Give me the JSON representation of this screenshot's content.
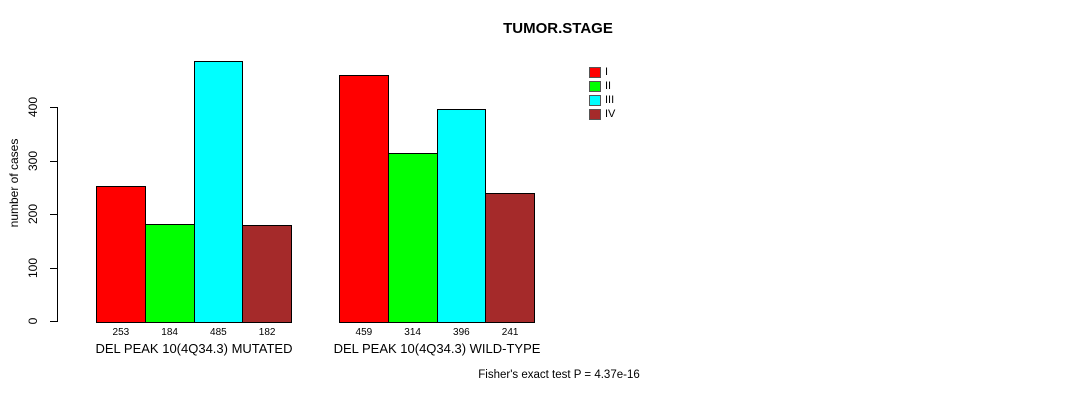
{
  "title": "TUMOR.STAGE",
  "chart_data": {
    "type": "bar",
    "title": "TUMOR.STAGE",
    "xlabel": "",
    "ylabel": "number of cases",
    "ylim": [
      0,
      400
    ],
    "yticks": [
      0,
      100,
      200,
      300,
      400
    ],
    "grid": false,
    "legend_position": "top-right",
    "series": [
      "I",
      "II",
      "III",
      "IV"
    ],
    "colors": [
      "#FF0000",
      "#00FF00",
      "#00FFFF",
      "#A52A2A"
    ],
    "categories": [
      "DEL PEAK 10(4Q34.3) MUTATED",
      "DEL PEAK 10(4Q34.3) WILD-TYPE"
    ],
    "groups": [
      {
        "label": "DEL PEAK 10(4Q34.3) MUTATED",
        "values": [
          253,
          184,
          485,
          182
        ]
      },
      {
        "label": "DEL PEAK 10(4Q34.3) WILD-TYPE",
        "values": [
          459,
          314,
          396,
          241
        ]
      }
    ],
    "annotation": "Fisher's exact test P = 4.37e-16"
  }
}
